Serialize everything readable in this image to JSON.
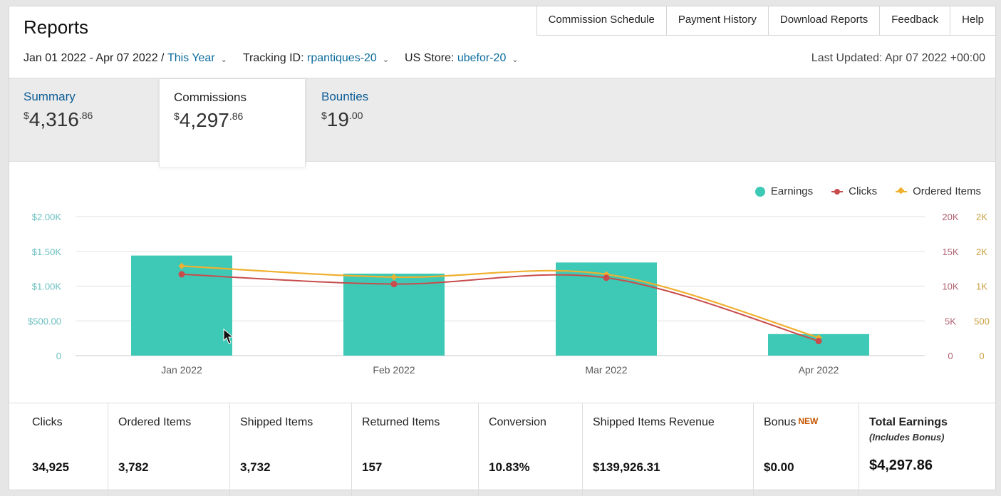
{
  "header": {
    "title": "Reports",
    "nav": [
      "Commission Schedule",
      "Payment History",
      "Download Reports",
      "Feedback",
      "Help"
    ]
  },
  "filters": {
    "date_range": "Jan 01 2022 - Apr 07 2022 /",
    "date_preset": "This Year",
    "tracking_label": "Tracking ID:",
    "tracking_value": "rpantiques-20",
    "store_label": "US Store:",
    "store_value": "ubefor-20",
    "last_updated": "Last Updated: Apr 07 2022 +00:00"
  },
  "tabs": [
    {
      "label": "Summary",
      "currency": "$",
      "whole": "4,316",
      "cents": ".86"
    },
    {
      "label": "Commissions",
      "currency": "$",
      "whole": "4,297",
      "cents": ".86"
    },
    {
      "label": "Bounties",
      "currency": "$",
      "whole": "19",
      "cents": ".00"
    }
  ],
  "legend": {
    "earnings": "Earnings",
    "clicks": "Clicks",
    "ordered": "Ordered Items"
  },
  "colors": {
    "earnings": "#3ec9b6",
    "clicks": "#c94c4c",
    "ordered": "#f0b030",
    "link": "#0b5c96"
  },
  "chart_data": {
    "type": "bar",
    "categories": [
      "Jan 2022",
      "Feb 2022",
      "Mar 2022",
      "Apr 2022"
    ],
    "series": [
      {
        "name": "Earnings",
        "type": "bar",
        "axis": "left",
        "values": [
          1440,
          1180,
          1340,
          310
        ]
      },
      {
        "name": "Clicks",
        "type": "line",
        "axis": "right-1",
        "values": [
          11700,
          10300,
          11200,
          2100
        ]
      },
      {
        "name": "Ordered Items",
        "type": "line",
        "axis": "right-2",
        "values": [
          1290,
          1130,
          1170,
          260
        ]
      }
    ],
    "y_left": {
      "ticks": [
        "0",
        "$500.00",
        "$1.00K",
        "$1.50K",
        "$2.00K"
      ],
      "range": [
        0,
        2000
      ]
    },
    "y_right_1": {
      "ticks": [
        "0",
        "5K",
        "10K",
        "15K",
        "20K"
      ],
      "range": [
        0,
        20000
      ]
    },
    "y_right_2": {
      "ticks": [
        "0",
        "500",
        "1K",
        "2K",
        "2K"
      ],
      "range": [
        0,
        2000
      ]
    },
    "legend_position": "top-right",
    "grid": true
  },
  "stats": [
    {
      "label": "Clicks",
      "value": "34,925"
    },
    {
      "label": "Ordered Items",
      "value": "3,782"
    },
    {
      "label": "Shipped Items",
      "value": "3,732"
    },
    {
      "label": "Returned Items",
      "value": "157"
    },
    {
      "label": "Conversion",
      "value": "10.83%"
    },
    {
      "label": "Shipped Items Revenue",
      "value": "$139,926.31"
    },
    {
      "label": "Bonus",
      "badge": "NEW",
      "value": "$0.00"
    },
    {
      "label": "Total Earnings",
      "sublabel": "(Includes Bonus)",
      "value": "$4,297.86"
    }
  ]
}
